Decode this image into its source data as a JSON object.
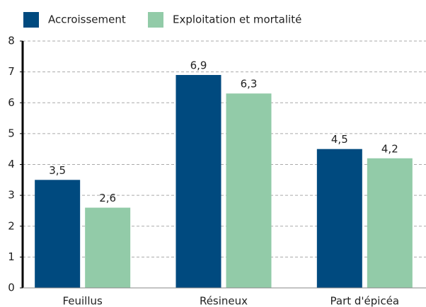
{
  "chart_data": {
    "type": "bar",
    "categories": [
      "Feuillus",
      "Résineux",
      "Part d'épicéa"
    ],
    "series": [
      {
        "name": "Accroissement",
        "color": "#004a7f",
        "values": [
          3.5,
          6.9,
          4.5
        ],
        "value_labels": [
          "3,5",
          "6,9",
          "4,5"
        ]
      },
      {
        "name": "Exploitation et mortalité",
        "color": "#92cba8",
        "values": [
          2.6,
          6.3,
          4.2
        ],
        "value_labels": [
          "2,6",
          "6,3",
          "4,2"
        ]
      }
    ],
    "ylim": [
      0,
      8
    ],
    "yticks": [
      0,
      1,
      2,
      3,
      4,
      5,
      6,
      7,
      8
    ],
    "grid": true,
    "legend": "top"
  }
}
